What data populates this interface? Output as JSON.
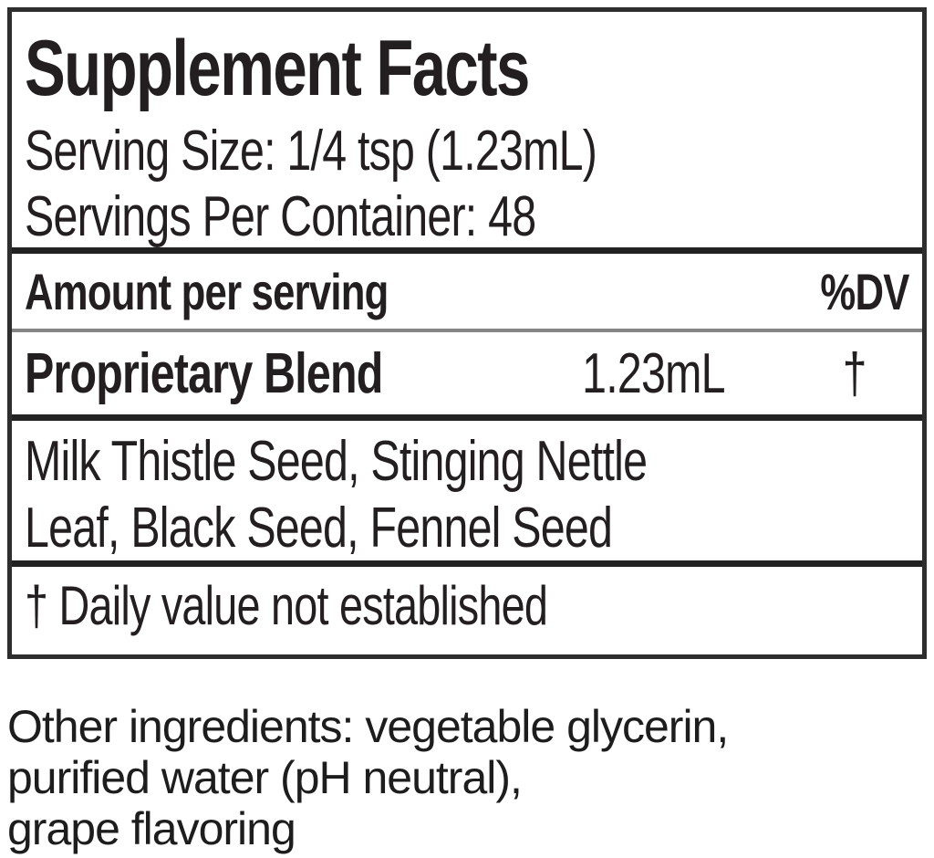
{
  "panel": {
    "title": "Supplement Facts",
    "serving_size": "Serving Size: 1/4 tsp (1.23mL)",
    "servings_per_container": "Servings Per Container: 48",
    "columns": {
      "amount_label": "Amount per serving",
      "dv_label": "%DV"
    },
    "blend": {
      "name": "Proprietary Blend",
      "amount": "1.23mL",
      "dv": "†"
    },
    "ingredients_lines": [
      "Milk Thistle Seed, Stinging Nettle",
      "Leaf, Black Seed, Fennel Seed"
    ],
    "footnote": "† Daily value not established"
  },
  "other_ingredients_lines": [
    "Other ingredients: vegetable glycerin,",
    "purified water (pH neutral),",
    "grape flavoring"
  ],
  "colors": {
    "text": "#231f20",
    "box_border": "#2e2e2e",
    "divider_thick": "#222222",
    "divider_thin": "#858585",
    "background": "#ffffff"
  }
}
